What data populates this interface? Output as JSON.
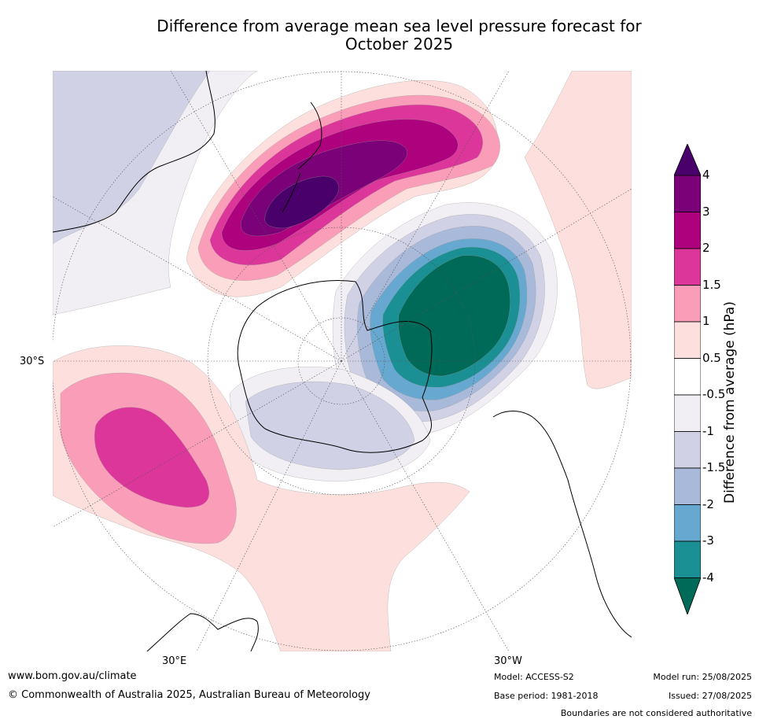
{
  "title_line1": "Difference from average mean sea level pressure forecast for",
  "title_line2": "October 2025",
  "map": {
    "projection": "south-polar-stereographic",
    "lat_label": "30°S",
    "lon_label_left": "30°E",
    "lon_label_right": "30°W"
  },
  "colors": {
    "n4_below": "#006a58",
    "n4": "#1a8f94",
    "n3": "#66a8cf",
    "n2": "#a8b9d9",
    "n1_5": "#d0d1e4",
    "n1": "#f2eff4",
    "zero": "#ffffff",
    "p0_5": "#fde0dd",
    "p1": "#f99db8",
    "p1_5": "#dd369a",
    "p2": "#ae017e",
    "p3": "#7a0177",
    "p4_above": "#4a006a"
  },
  "colorbar": {
    "ticks": [
      "4",
      "3",
      "2",
      "1.5",
      "1",
      "0.5",
      "-0.5",
      "-1",
      "-1.5",
      "-2",
      "-3",
      "-4"
    ],
    "label": "Difference from average (hPa)"
  },
  "footer": {
    "website": "www.bom.gov.au/climate",
    "copyright": "© Commonwealth of Australia 2025, Australian Bureau of Meteorology",
    "model": "Model: ACCESS-S2",
    "base_period": "Base period: 1981-2018",
    "model_run": "Model run: 25/08/2025",
    "issued": "Issued: 27/08/2025",
    "disclaimer": "Boundaries are not considered authoritative"
  }
}
